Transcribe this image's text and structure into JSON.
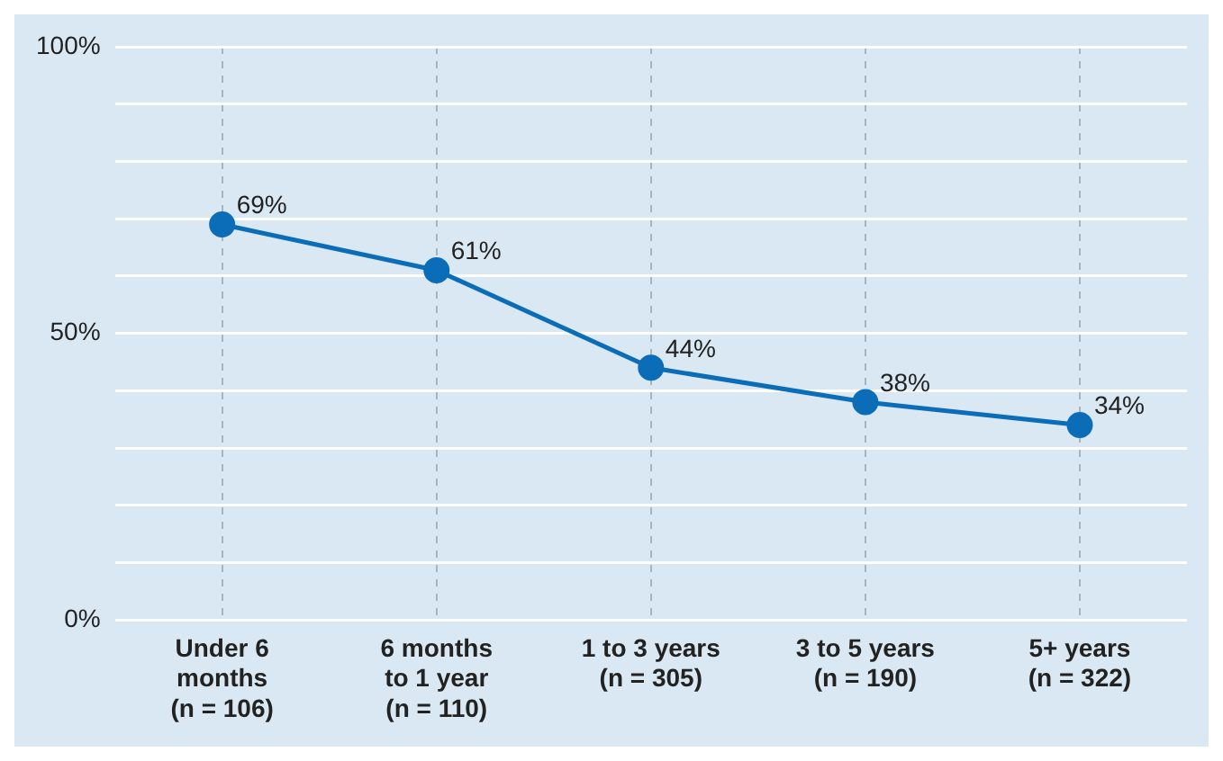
{
  "chart_data": {
    "type": "line",
    "categories": [
      "Under 6\nmonths\n(n = 106)",
      "6 months\nto 1 year\n(n = 110)",
      "1 to 3 years\n(n = 305)",
      "3 to 5 years\n(n = 190)",
      "5+ years\n(n = 322)"
    ],
    "series": [
      {
        "color": "#0b6db7",
        "values": [
          69,
          61,
          44,
          38,
          34
        ],
        "value_labels": [
          "69%",
          "61%",
          "44%",
          "38%",
          "34%"
        ]
      }
    ],
    "ylim": [
      0,
      100
    ],
    "yticks": [
      {
        "value": 0,
        "label": "0%"
      },
      {
        "value": 10,
        "label": null
      },
      {
        "value": 20,
        "label": null
      },
      {
        "value": 30,
        "label": null
      },
      {
        "value": 40,
        "label": null
      },
      {
        "value": 50,
        "label": "50%"
      },
      {
        "value": 60,
        "label": null
      },
      {
        "value": 70,
        "label": null
      },
      {
        "value": 80,
        "label": null
      },
      {
        "value": 90,
        "label": null
      },
      {
        "value": 100,
        "label": "100%"
      }
    ],
    "grid": true,
    "legend": false,
    "marker": "circle",
    "line_style": "solid"
  }
}
